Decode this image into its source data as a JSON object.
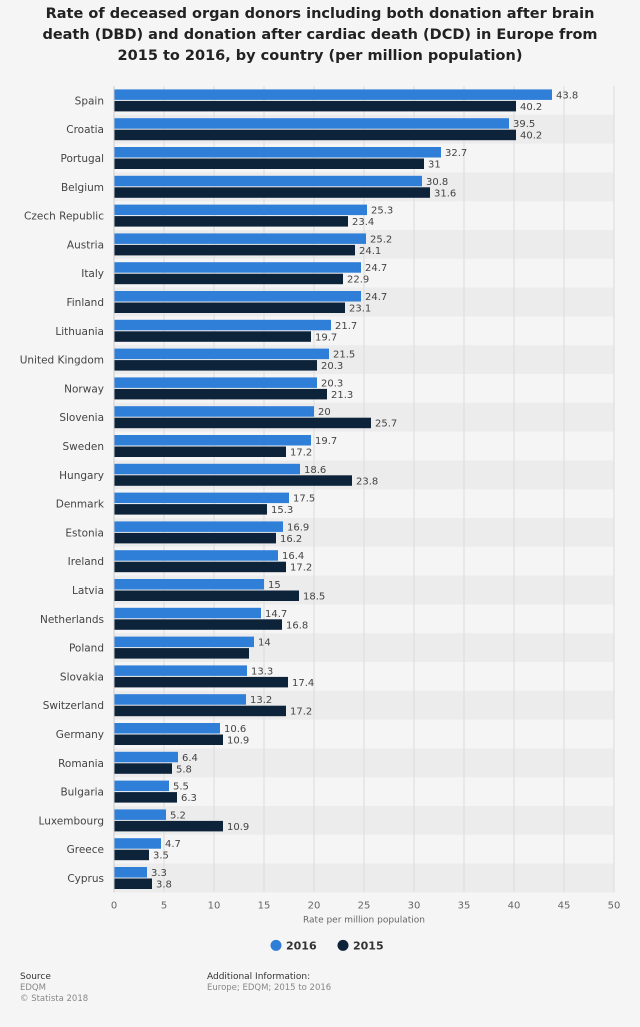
{
  "title": "Rate of deceased organ donors including both donation after brain death (DBD) and donation after cardiac death (DCD) in Europe from 2015 to 2016, by country (per million population)",
  "chart_data": {
    "type": "bar",
    "orientation": "horizontal",
    "categories": [
      "Spain",
      "Croatia",
      "Portugal",
      "Belgium",
      "Czech Republic",
      "Austria",
      "Italy",
      "Finland",
      "Lithuania",
      "United Kingdom",
      "Norway",
      "Slovenia",
      "Sweden",
      "Hungary",
      "Denmark",
      "Estonia",
      "Ireland",
      "Latvia",
      "Netherlands",
      "Poland",
      "Slovakia",
      "Switzerland",
      "Germany",
      "Romania",
      "Bulgaria",
      "Luxembourg",
      "Greece",
      "Cyprus"
    ],
    "series": [
      {
        "name": "2016",
        "color": "#2f7ed8",
        "values": [
          43.8,
          39.5,
          32.7,
          30.8,
          25.3,
          25.2,
          24.7,
          24.7,
          21.7,
          21.5,
          20.3,
          20,
          19.7,
          18.6,
          17.5,
          16.9,
          16.4,
          15,
          14.7,
          14,
          13.3,
          13.2,
          10.6,
          6.4,
          5.5,
          5.2,
          4.7,
          3.3
        ]
      },
      {
        "name": "2015",
        "color": "#0d233a",
        "values": [
          40.2,
          40.2,
          31,
          31.6,
          23.4,
          24.1,
          22.9,
          23.1,
          19.7,
          20.3,
          21.3,
          25.7,
          17.2,
          23.8,
          15.3,
          16.2,
          17.2,
          18.5,
          16.8,
          13.5,
          17.4,
          17.2,
          10.9,
          5.8,
          6.3,
          10.9,
          3.5,
          3.8
        ]
      }
    ],
    "value_labels": {
      "2016": [
        "43.8",
        "39.5",
        "32.7",
        "30.8",
        "25.3",
        "25.2",
        "24.7",
        "24.7",
        "21.7",
        "21.5",
        "20.3",
        "20",
        "19.7",
        "18.6",
        "17.5",
        "16.9",
        "16.4",
        "15",
        "14.7",
        "14",
        "13.3",
        "13.2",
        "10.6",
        "6.4",
        "5.5",
        "5.2",
        "4.7",
        "3.3"
      ],
      "2015": [
        "40.2",
        "40.2",
        "31",
        "31.6",
        "23.4",
        "24.1",
        "22.9",
        "23.1",
        "19.7",
        "20.3",
        "21.3",
        "25.7",
        "17.2",
        "23.8",
        "15.3",
        "16.2",
        "17.2",
        "18.5",
        "16.8",
        "",
        "17.4",
        "17.2",
        "10.9",
        "5.8",
        "6.3",
        "10.9",
        "3.5",
        "3.8"
      ]
    },
    "xlim": [
      0,
      50
    ],
    "xticks": [
      0,
      5,
      10,
      15,
      20,
      25,
      30,
      35,
      40,
      45,
      50
    ],
    "xlabel": "Rate per million population",
    "grid": true,
    "legend_position": "bottom"
  },
  "footer": {
    "source_heading": "Source",
    "source_lines": [
      "EDQM",
      "© Statista 2018"
    ],
    "info_heading": "Additional Information:",
    "info_lines": [
      "Europe; EDQM; 2015 to 2016"
    ]
  }
}
